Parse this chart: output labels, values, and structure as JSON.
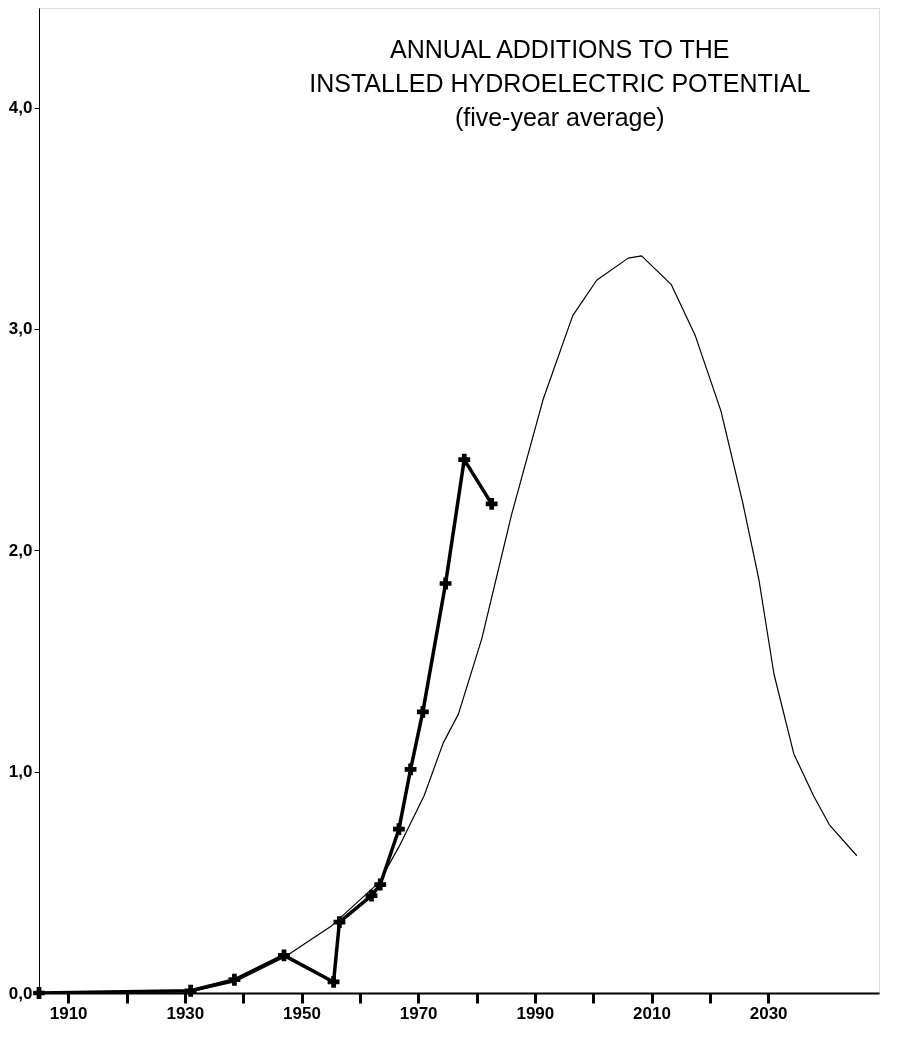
{
  "chart_data": {
    "type": "line",
    "title": "ANNUAL ADDITIONS TO THE\nINSTALLED HYDROELECTRIC POTENTIAL",
    "subtitle": "(five-year average)",
    "xlim": [
      1905,
      2049
    ],
    "ylim": [
      0,
      4.45
    ],
    "xticks": [
      {
        "value": 1910,
        "label": "1910"
      },
      {
        "value": 1920,
        "label": null
      },
      {
        "value": 1930,
        "label": "1930"
      },
      {
        "value": 1940,
        "label": null
      },
      {
        "value": 1950,
        "label": "1950"
      },
      {
        "value": 1960,
        "label": null
      },
      {
        "value": 1970,
        "label": "1970"
      },
      {
        "value": 1980,
        "label": null
      },
      {
        "value": 1990,
        "label": "1990"
      },
      {
        "value": 2000,
        "label": null
      },
      {
        "value": 2010,
        "label": "2010"
      },
      {
        "value": 2020,
        "label": null
      },
      {
        "value": 2030,
        "label": "2030"
      }
    ],
    "yticks": [
      {
        "value": 0,
        "label": "0,0"
      },
      {
        "value": 1,
        "label": "1,0"
      },
      {
        "value": 2,
        "label": "2,0"
      },
      {
        "value": 3,
        "label": "3,0"
      },
      {
        "value": 4,
        "label": "4,0"
      }
    ],
    "grid": false,
    "series": [
      {
        "color": "#000000",
        "marker": "cross",
        "line_style": "solid",
        "x": [
          1905,
          1931,
          1938.5,
          1947,
          1955.5,
          1956.5,
          1962,
          1963.5,
          1966.7,
          1968.7,
          1970.8,
          1974.7,
          1977.9,
          1982.6
        ],
        "values": [
          0,
          0.01,
          0.06,
          0.17,
          0.05,
          0.32,
          0.44,
          0.49,
          0.74,
          1.01,
          1.27,
          1.85,
          2.41,
          2.21
        ]
      },
      {
        "color": "#000000",
        "marker": "none",
        "line_style": "solid",
        "x": [
          1905,
          1930,
          1938.5,
          1947,
          1955,
          1963.3,
          1966.7,
          1971,
          1974.3,
          1976.9,
          1980.9,
          1986,
          1991.4,
          1996.5,
          2000.6,
          2006,
          2008.3,
          2013.4,
          2017.5,
          2021.9,
          2025.6,
          2028.4,
          2031,
          2034.4,
          2037.8,
          2040.5,
          2045.2
        ],
        "values": [
          0,
          0,
          0.05,
          0.16,
          0.3,
          0.5,
          0.66,
          0.89,
          1.13,
          1.26,
          1.6,
          2.16,
          2.68,
          3.06,
          3.22,
          3.32,
          3.33,
          3.2,
          2.97,
          2.63,
          2.22,
          1.87,
          1.44,
          1.08,
          0.89,
          0.76,
          0.62
        ]
      }
    ]
  }
}
